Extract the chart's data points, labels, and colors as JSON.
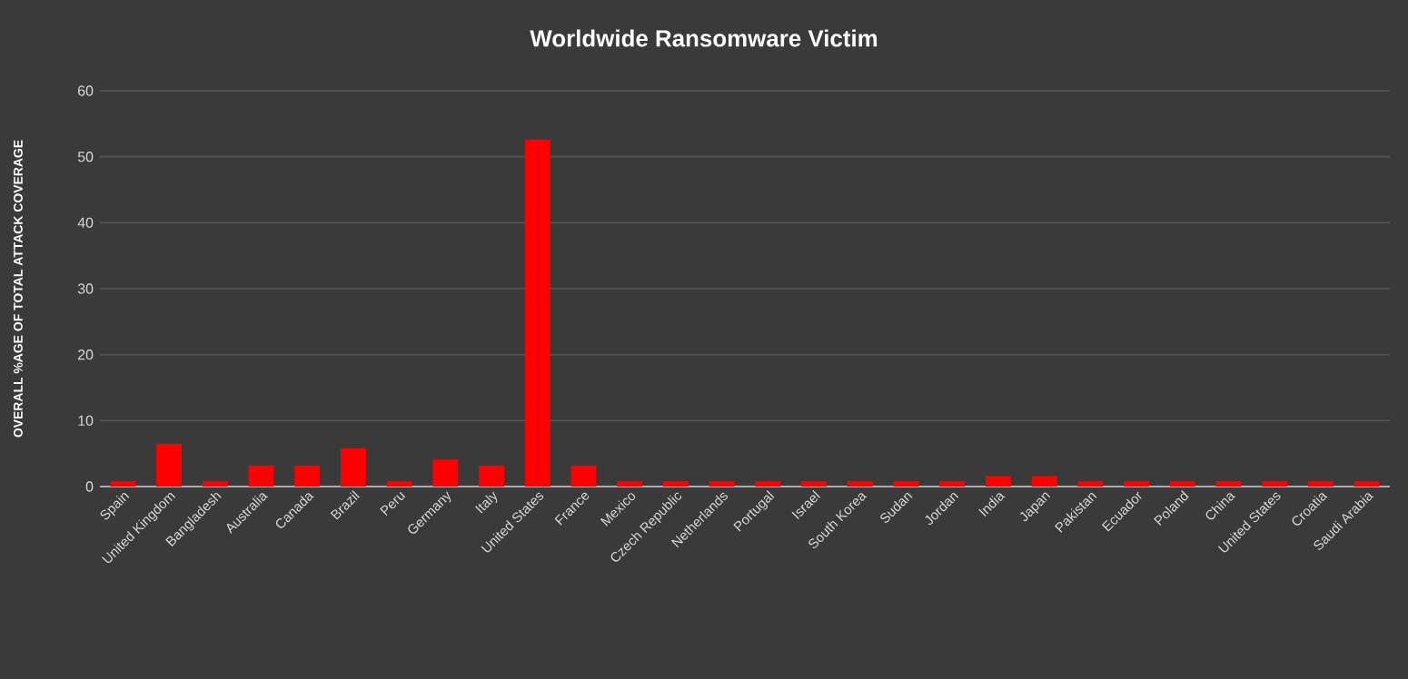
{
  "chart_data": {
    "type": "bar",
    "title": "Worldwide Ransomware Victim",
    "ylabel": "OVERALL %AGE OF TOTAL ATTACK COVERAGE",
    "categories": [
      "Spain",
      "United Kingdom",
      "Bangladesh",
      "Australia",
      "Canada",
      "Brazil",
      "Peru",
      "Germany",
      "Italy",
      "United States",
      "France",
      "Mexico",
      "Czech Republic",
      "Netherlands",
      "Portugal",
      "Israel",
      "South Korea",
      "Sudan",
      "Jordan",
      "India",
      "Japan",
      "Pakistan",
      "Ecuador",
      "Poland",
      "China",
      "United States",
      "Croatia",
      "Saudi Arabia"
    ],
    "values": [
      0.8,
      6.5,
      0.8,
      3.2,
      3.2,
      5.8,
      0.8,
      4.1,
      3.2,
      52.6,
      3.2,
      0.8,
      0.8,
      0.8,
      0.8,
      0.8,
      0.8,
      0.8,
      0.8,
      1.6,
      1.6,
      0.8,
      0.8,
      0.8,
      0.8,
      0.8,
      0.8,
      0.8
    ],
    "color": "#ff0000",
    "ylim": [
      0,
      60
    ],
    "yticks": [
      0,
      10,
      20,
      30,
      40,
      50,
      60
    ],
    "grid": "y"
  }
}
